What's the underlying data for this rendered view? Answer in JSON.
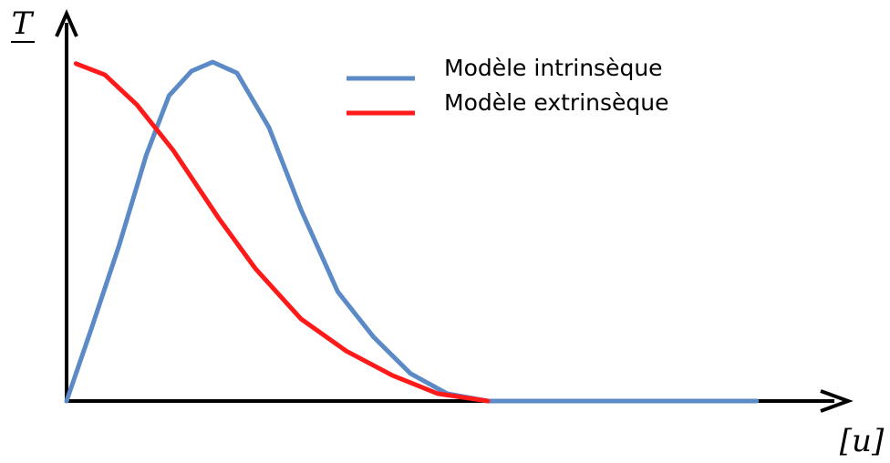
{
  "chart_data": {
    "type": "line",
    "y_label": "T",
    "x_label": "[u]",
    "xlim": [
      0,
      100
    ],
    "ylim": [
      0,
      100
    ],
    "series": [
      {
        "name": "Modèle intrinsèque",
        "color": "#5b8ac6",
        "x": [
          0,
          3.2,
          6.7,
          10.2,
          13.1,
          16.0,
          18.7,
          21.8,
          25.9,
          30.0,
          34.7,
          39.3,
          44.0,
          48.7,
          53.9,
          88.3
        ],
        "values": [
          0,
          18.8,
          40,
          63.5,
          78.8,
          85.2,
          87.5,
          84.7,
          70.6,
          49.4,
          28.2,
          16.5,
          7.1,
          1.9,
          0,
          0
        ]
      },
      {
        "name": "Modèle extrinsèque",
        "color": "#ff1a1a",
        "x": [
          1.2,
          4.9,
          9.0,
          13.65,
          19.5,
          24.2,
          30.0,
          35.8,
          41.7,
          47.5,
          53.9
        ],
        "values": [
          87.1,
          84.2,
          76.5,
          64.7,
          47.1,
          34.1,
          21.2,
          12.9,
          6.6,
          1.9,
          0
        ]
      }
    ]
  }
}
